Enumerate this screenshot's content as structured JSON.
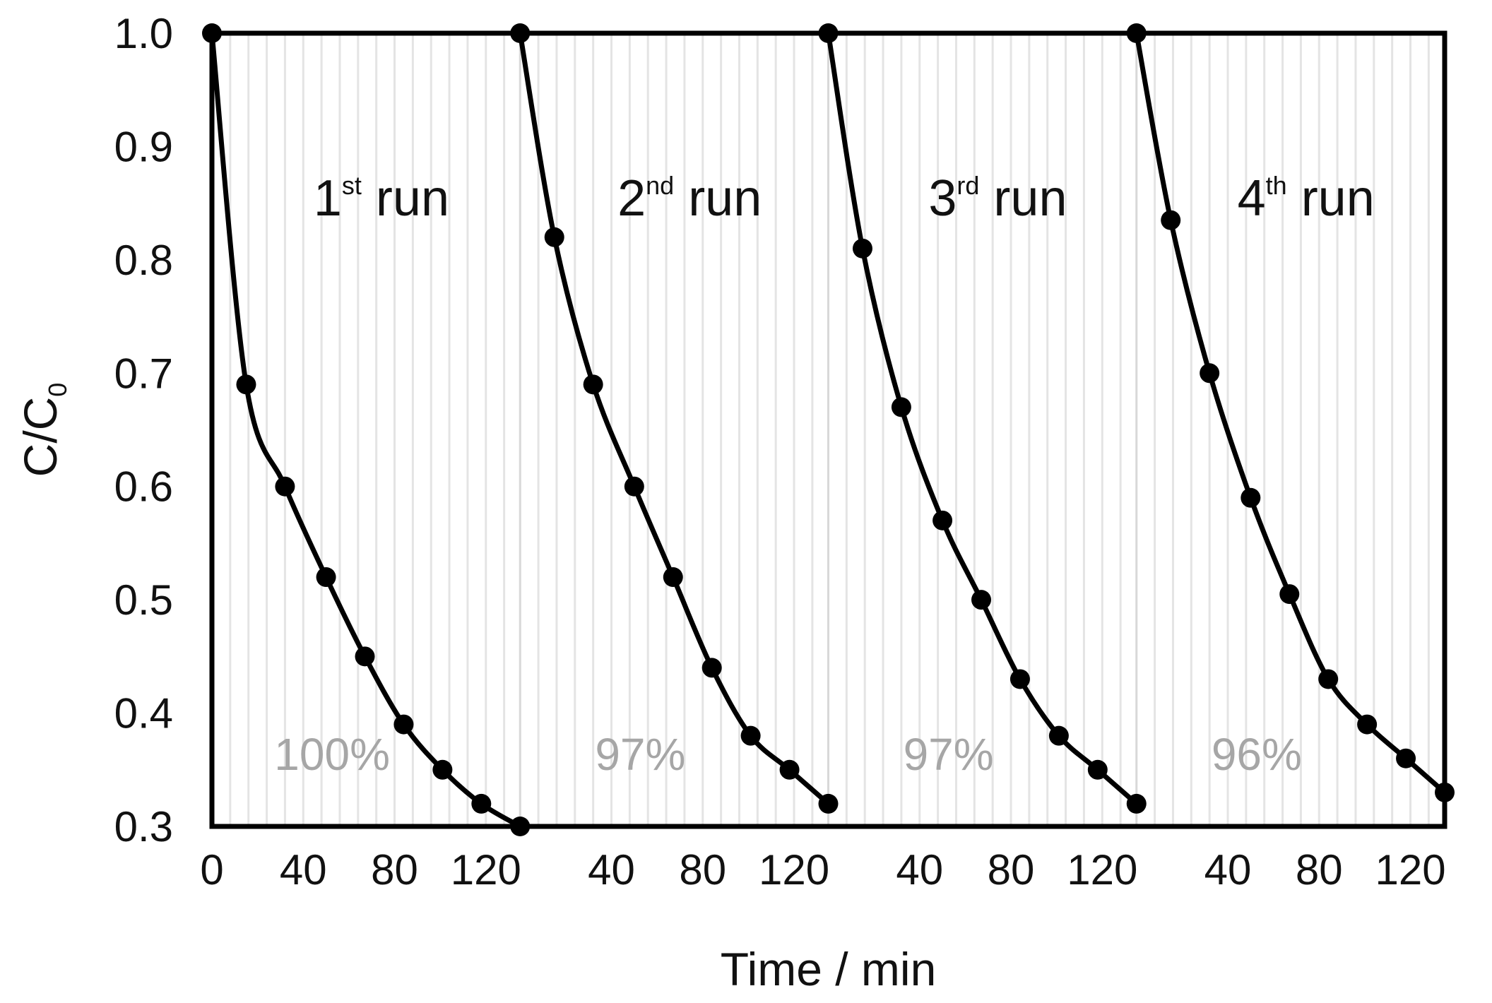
{
  "chart_data": {
    "type": "line",
    "xlabel": "Time / min",
    "ylabel_main": "C/C",
    "ylabel_sub": "0",
    "ylim": [
      0.3,
      1.0
    ],
    "yticks": [
      "0.3",
      "0.4",
      "0.5",
      "0.6",
      "0.7",
      "0.8",
      "0.9",
      "1.0"
    ],
    "x_tick_values": [
      0,
      40,
      80,
      120
    ],
    "x_tick_labels": [
      "0",
      "40",
      "80",
      "120"
    ],
    "run_xlim": [
      0,
      120
    ],
    "grid": "vertical",
    "runs": [
      {
        "label_num": "1",
        "label_sup": "st",
        "label_word": "run",
        "efficiency": "100%",
        "x": [
          0,
          15,
          32,
          50,
          67,
          84,
          101,
          118,
          135
        ],
        "y": [
          1.0,
          0.69,
          0.6,
          0.52,
          0.45,
          0.39,
          0.35,
          0.32,
          0.3
        ]
      },
      {
        "label_num": "2",
        "label_sup": "nd",
        "label_word": "run",
        "efficiency": "97%",
        "x": [
          0,
          15,
          32,
          50,
          67,
          84,
          101,
          118,
          135
        ],
        "y": [
          1.0,
          0.82,
          0.69,
          0.6,
          0.52,
          0.44,
          0.38,
          0.35,
          0.32
        ]
      },
      {
        "label_num": "3",
        "label_sup": "rd",
        "label_word": "run",
        "efficiency": "97%",
        "x": [
          0,
          15,
          32,
          50,
          67,
          84,
          101,
          118,
          135
        ],
        "y": [
          1.0,
          0.81,
          0.67,
          0.57,
          0.5,
          0.43,
          0.38,
          0.35,
          0.32
        ]
      },
      {
        "label_num": "4",
        "label_sup": "th",
        "label_word": "run",
        "efficiency": "96%",
        "x": [
          0,
          15,
          32,
          50,
          67,
          84,
          101,
          118,
          135
        ],
        "y": [
          1.0,
          0.835,
          0.7,
          0.59,
          0.505,
          0.43,
          0.39,
          0.36,
          0.33
        ]
      }
    ]
  }
}
